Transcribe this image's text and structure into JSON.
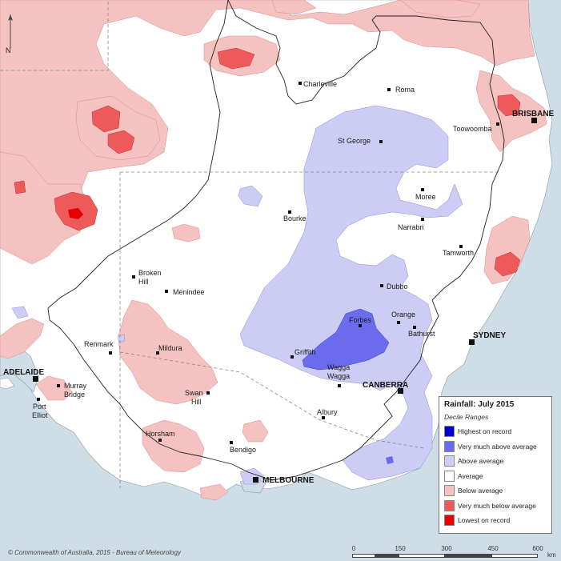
{
  "colors": {
    "ocean": "#cfdde6",
    "land": "#ffffff",
    "highest": "#0000cc",
    "very_much_above": "#6b6bee",
    "above": "#ccccf5",
    "average": "#ffffff",
    "below": "#f5c2c2",
    "very_much_below": "#ee5a5a",
    "lowest": "#e60000"
  },
  "map": {
    "north_arrow": "N",
    "towns": [
      {
        "name": "Charleville"
      },
      {
        "name": "Roma"
      },
      {
        "name": "Toowoomba"
      },
      {
        "name": "St George"
      },
      {
        "name": "Moree"
      },
      {
        "name": "Narrabri"
      },
      {
        "name": "Bourke"
      },
      {
        "name": "Tamworth"
      },
      {
        "name": "Broken"
      },
      {
        "name": "Hill"
      },
      {
        "name": "Menindee"
      },
      {
        "name": "Dubbo"
      },
      {
        "name": "Orange"
      },
      {
        "name": "Bathurst"
      },
      {
        "name": "Forbes"
      },
      {
        "name": "Griffith"
      },
      {
        "name": "Renmark"
      },
      {
        "name": "Mildura"
      },
      {
        "name": "Wagga"
      },
      {
        "name": "Wagga"
      },
      {
        "name": "Murray"
      },
      {
        "name": "Bridge"
      },
      {
        "name": "Port"
      },
      {
        "name": "Elliot"
      },
      {
        "name": "Swan"
      },
      {
        "name": "Hill"
      },
      {
        "name": "Albury"
      },
      {
        "name": "Horsham"
      },
      {
        "name": "Bendigo"
      }
    ],
    "capitals": [
      {
        "name": "BRISBANE"
      },
      {
        "name": "SYDNEY"
      },
      {
        "name": "CANBERRA"
      },
      {
        "name": "ADELAIDE"
      },
      {
        "name": "MELBOURNE"
      }
    ]
  },
  "legend": {
    "title": "Rainfall: July 2015",
    "subtitle": "Decile Ranges",
    "items": [
      {
        "label": "Highest on record",
        "color": "#0000cc"
      },
      {
        "label": "Very much above average",
        "color": "#6b6bee"
      },
      {
        "label": "Above average",
        "color": "#ccccf5"
      },
      {
        "label": "Average",
        "color": "#ffffff"
      },
      {
        "label": "Below average",
        "color": "#f5c2c2"
      },
      {
        "label": "Very much below average",
        "color": "#ee5a5a"
      },
      {
        "label": "Lowest on record",
        "color": "#e60000"
      }
    ]
  },
  "copyright": "© Commonwealth of Australia, 2015 - Bureau of Meteorology",
  "scale": {
    "ticks": [
      "0",
      "150",
      "300",
      "450",
      "600"
    ],
    "unit": "km"
  }
}
